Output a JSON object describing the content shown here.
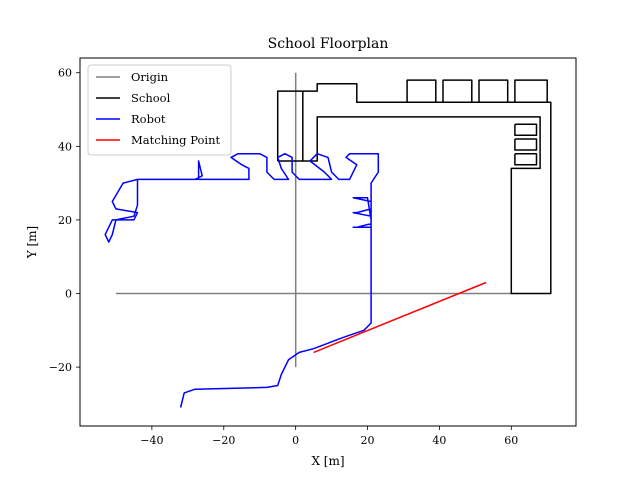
{
  "chart_data": {
    "type": "line",
    "title": "School Floorplan",
    "xlabel": "X [m]",
    "ylabel": "Y [m]",
    "xlim": [
      -60,
      78
    ],
    "ylim": [
      -36,
      64
    ],
    "xticks": [
      -40,
      -20,
      0,
      20,
      40,
      60
    ],
    "yticks": [
      -20,
      0,
      20,
      40,
      60
    ],
    "xtick_labels": [
      "−40",
      "−20",
      "0",
      "20",
      "40",
      "60"
    ],
    "ytick_labels": [
      "−20",
      "0",
      "20",
      "40",
      "60"
    ],
    "grid": false,
    "legend_position": "top-left",
    "series": [
      {
        "name": "Origin",
        "color": "#808080",
        "segments": [
          [
            [
              -50,
              0
            ],
            [
              60,
              0
            ]
          ],
          [
            [
              0,
              -20
            ],
            [
              0,
              60
            ]
          ]
        ]
      },
      {
        "name": "School",
        "color": "#000000",
        "segments": [
          [
            [
              -5,
              36
            ],
            [
              -5,
              55
            ],
            [
              6,
              55
            ],
            [
              6,
              57
            ],
            [
              17,
              57
            ],
            [
              17,
              52
            ],
            [
              71,
              52
            ],
            [
              71,
              0
            ],
            [
              60,
              0
            ],
            [
              60,
              34
            ],
            [
              68,
              34
            ],
            [
              68,
              48
            ],
            [
              6,
              48
            ],
            [
              6,
              36
            ],
            [
              2,
              36
            ],
            [
              2,
              55
            ],
            [
              -5,
              55
            ]
          ],
          [
            [
              31,
              52
            ],
            [
              31,
              58
            ],
            [
              39,
              58
            ],
            [
              39,
              52
            ]
          ],
          [
            [
              41,
              52
            ],
            [
              41,
              58
            ],
            [
              49,
              58
            ],
            [
              49,
              52
            ]
          ],
          [
            [
              51,
              52
            ],
            [
              51,
              58
            ],
            [
              59,
              58
            ],
            [
              59,
              52
            ]
          ],
          [
            [
              61,
              52
            ],
            [
              61,
              58
            ],
            [
              70,
              58
            ],
            [
              70,
              52
            ]
          ],
          [
            [
              61,
              46
            ],
            [
              67,
              46
            ],
            [
              67,
              43
            ],
            [
              61,
              43
            ],
            [
              61,
              46
            ]
          ],
          [
            [
              61,
              42
            ],
            [
              67,
              42
            ],
            [
              67,
              39
            ],
            [
              61,
              39
            ],
            [
              61,
              42
            ]
          ],
          [
            [
              61,
              38
            ],
            [
              67,
              38
            ],
            [
              67,
              35
            ],
            [
              61,
              35
            ],
            [
              61,
              38
            ]
          ],
          [
            [
              -5,
              36
            ],
            [
              2,
              36
            ]
          ]
        ]
      },
      {
        "name": "Robot",
        "color": "#0000ff",
        "segments": [
          [
            [
              -32,
              -31
            ],
            [
              -31,
              -27
            ],
            [
              -28,
              -26
            ],
            [
              -8,
              -25.5
            ],
            [
              -5,
              -25
            ],
            [
              -4,
              -22
            ],
            [
              -2,
              -18
            ],
            [
              1,
              -16
            ],
            [
              5,
              -15
            ],
            [
              13,
              -12
            ],
            [
              19,
              -10
            ],
            [
              21,
              -8
            ],
            [
              21,
              20
            ],
            [
              20,
              26
            ],
            [
              18,
              26
            ],
            [
              16,
              26
            ],
            [
              21,
              25
            ],
            [
              21,
              23
            ],
            [
              17,
              22
            ],
            [
              16,
              22
            ],
            [
              21,
              21
            ],
            [
              21,
              19
            ],
            [
              17,
              18
            ],
            [
              16,
              18
            ],
            [
              21,
              18
            ],
            [
              21,
              30
            ],
            [
              23,
              33
            ],
            [
              23,
              38
            ],
            [
              15,
              38
            ],
            [
              14,
              37
            ],
            [
              17,
              35
            ],
            [
              15,
              31
            ],
            [
              12,
              31
            ],
            [
              10,
              33
            ],
            [
              9,
              37
            ],
            [
              6,
              38
            ],
            [
              4,
              36
            ],
            [
              8,
              33
            ],
            [
              10,
              31
            ],
            [
              1,
              31
            ],
            [
              -1,
              33
            ],
            [
              -1,
              37
            ],
            [
              -3,
              38
            ],
            [
              -5,
              37
            ],
            [
              -4,
              34
            ],
            [
              -2,
              31
            ],
            [
              -6,
              31
            ],
            [
              -8,
              33
            ],
            [
              -8,
              37
            ],
            [
              -10,
              38
            ],
            [
              -16,
              38
            ],
            [
              -18,
              37
            ],
            [
              -15,
              35
            ],
            [
              -13,
              34
            ],
            [
              -13,
              31
            ],
            [
              -28,
              31
            ],
            [
              -26,
              32
            ],
            [
              -27,
              36
            ],
            [
              -27,
              31
            ],
            [
              -38,
              31
            ],
            [
              -44,
              31
            ],
            [
              -48,
              30
            ],
            [
              -51,
              25
            ],
            [
              -50,
              23
            ],
            [
              -44,
              22
            ],
            [
              -45,
              20
            ],
            [
              -51,
              20
            ],
            [
              -53,
              16
            ],
            [
              -52,
              14
            ],
            [
              -51,
              16
            ],
            [
              -50,
              20
            ],
            [
              -45,
              21
            ],
            [
              -44,
              24
            ],
            [
              -44,
              30
            ],
            [
              -44,
              31
            ]
          ]
        ]
      },
      {
        "name": "Matching Point",
        "color": "#ff0000",
        "segments": [
          [
            [
              53,
              3
            ],
            [
              5,
              -16
            ]
          ]
        ]
      }
    ]
  }
}
